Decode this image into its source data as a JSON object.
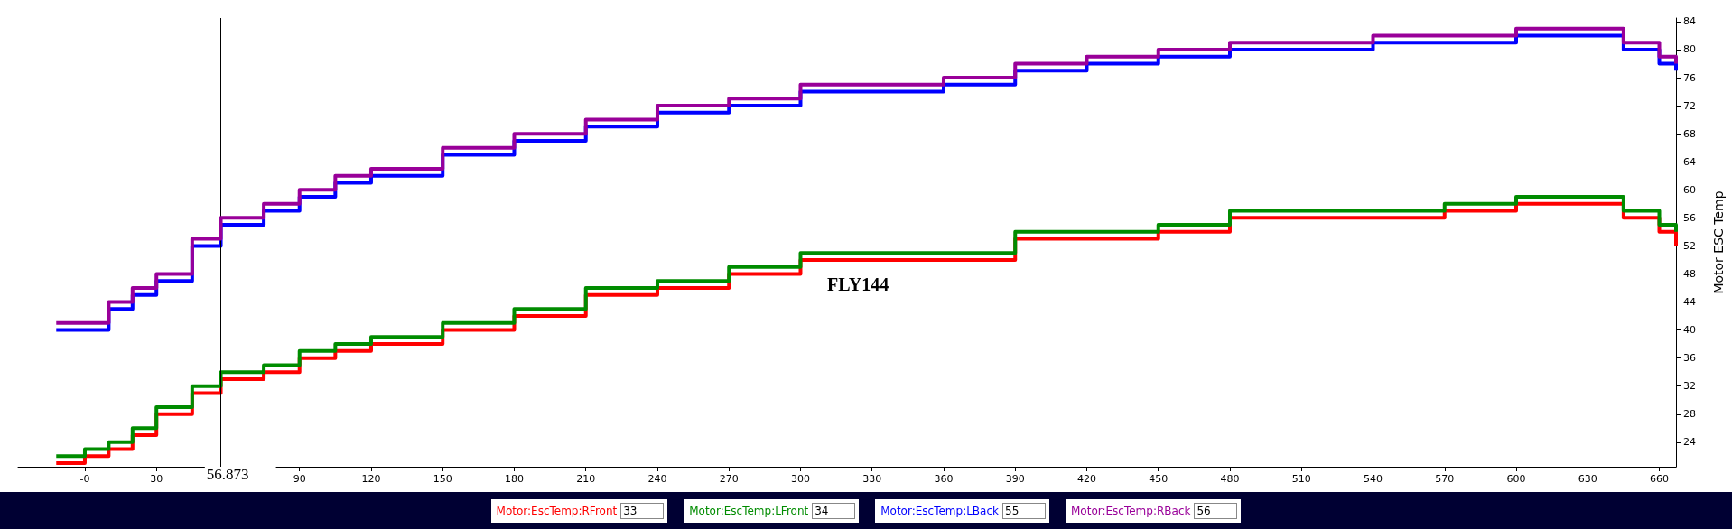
{
  "chart_data": {
    "type": "step",
    "title": "FLY144",
    "ylabel": "Motor ESC Temp",
    "xlim": [
      -28,
      667
    ],
    "ylim": [
      20.5,
      84.5
    ],
    "xticks": [
      {
        "value": 0,
        "label": "-0"
      },
      30,
      {
        "value": 60,
        "label": null
      },
      90,
      120,
      150,
      180,
      210,
      240,
      270,
      300,
      330,
      360,
      390,
      420,
      450,
      480,
      510,
      540,
      570,
      600,
      630,
      660
    ],
    "yticks": [
      24,
      28,
      32,
      36,
      40,
      44,
      48,
      52,
      56,
      60,
      64,
      68,
      72,
      76,
      80,
      84
    ],
    "x": [
      -12,
      0,
      10,
      20,
      30,
      45,
      57,
      75,
      90,
      105,
      120,
      150,
      180,
      210,
      240,
      270,
      300,
      330,
      360,
      390,
      420,
      450,
      480,
      510,
      540,
      570,
      600,
      630,
      645,
      660,
      667
    ],
    "series": [
      {
        "name": "Motor:EscTemp:RFront",
        "color": "#ff0000",
        "values": [
          21,
          22,
          23,
          25,
          28,
          31,
          33,
          34,
          36,
          37,
          38,
          40,
          42,
          45,
          46,
          48,
          50,
          50,
          50,
          53,
          53,
          54,
          56,
          56,
          56,
          57,
          58,
          58,
          56,
          54,
          52
        ]
      },
      {
        "name": "Motor:EscTemp:LFront",
        "color": "#008c00",
        "values": [
          22,
          23,
          24,
          26,
          29,
          32,
          34,
          35,
          37,
          38,
          39,
          41,
          43,
          46,
          47,
          49,
          51,
          51,
          51,
          54,
          54,
          55,
          57,
          57,
          57,
          58,
          59,
          59,
          57,
          55,
          54
        ]
      },
      {
        "name": "Motor:EscTemp:LBack",
        "color": "#0000ff",
        "values": [
          40,
          40,
          43,
          45,
          47,
          52,
          55,
          57,
          59,
          61,
          62,
          65,
          67,
          69,
          71,
          72,
          74,
          74,
          75,
          77,
          78,
          79,
          80,
          80,
          81,
          81,
          82,
          82,
          80,
          78,
          77
        ]
      },
      {
        "name": "Motor:EscTemp:RBack",
        "color": "#990099",
        "values": [
          41,
          41,
          44,
          46,
          48,
          53,
          56,
          58,
          60,
          62,
          63,
          66,
          68,
          70,
          72,
          73,
          75,
          75,
          76,
          78,
          79,
          80,
          81,
          81,
          82,
          82,
          83,
          83,
          81,
          79,
          78
        ]
      }
    ],
    "ref_lines": [
      {
        "axis": "x",
        "value": 56.873,
        "label": "56.873",
        "color": "#000000"
      }
    ],
    "annotations": [
      "33",
      "34",
      "55",
      "56"
    ],
    "legend": "bottom",
    "marker": "none",
    "grid": false
  }
}
